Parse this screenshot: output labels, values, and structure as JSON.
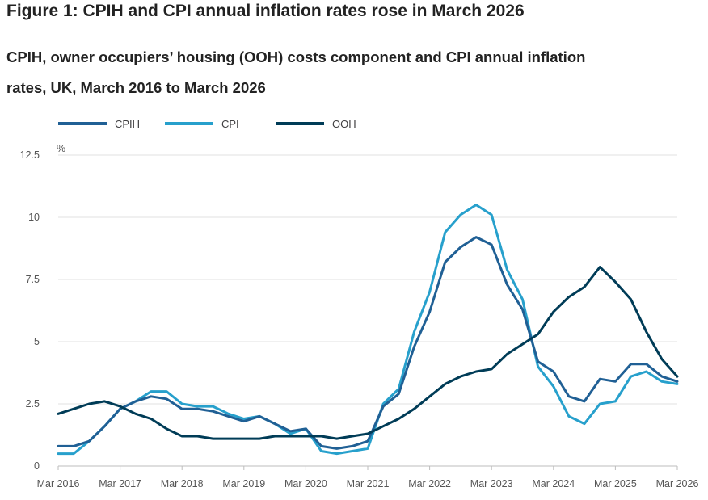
{
  "figure": {
    "title": "Figure 1: CPIH and CPI annual inflation rates rose in March 2026",
    "subtitle": "CPIH, owner occupiers’ housing (OOH) costs component and CPI annual inflation rates, UK, March 2016 to March 2026"
  },
  "colors": {
    "CPIH": "#206095",
    "CPI": "#27a0cc",
    "OOH": "#003c57",
    "grid": "#e0e0e0",
    "axis": "#bdbdbd",
    "text": "#555555"
  },
  "chart_data": {
    "type": "line",
    "y_unit_label": "%",
    "ylim": [
      0,
      12.5
    ],
    "y_ticks": [
      0,
      2.5,
      5,
      7.5,
      10,
      12.5
    ],
    "y_tick_labels": [
      "0",
      "2.5",
      "5",
      "7.5",
      "10",
      "12.5"
    ],
    "x_range": [
      "2016-03",
      "2026-03"
    ],
    "x_ticks": [
      "2016-03",
      "2017-03",
      "2018-03",
      "2019-03",
      "2020-03",
      "2021-03",
      "2022-03",
      "2023-03",
      "2024-03",
      "2025-03",
      "2026-03"
    ],
    "x_tick_labels": [
      "Mar 2016",
      "Mar 2017",
      "Mar 2018",
      "Mar 2019",
      "Mar 2020",
      "Mar 2021",
      "Mar 2022",
      "Mar 2023",
      "Mar 2024",
      "Mar 2025",
      "Mar 2026"
    ],
    "grid": "horizontal",
    "legend_position": "top-left",
    "series": [
      {
        "name": "CPIH",
        "points": [
          [
            "2016-03",
            0.8
          ],
          [
            "2016-06",
            0.8
          ],
          [
            "2016-09",
            1.0
          ],
          [
            "2016-12",
            1.6
          ],
          [
            "2017-03",
            2.3
          ],
          [
            "2017-06",
            2.6
          ],
          [
            "2017-09",
            2.8
          ],
          [
            "2017-12",
            2.7
          ],
          [
            "2018-03",
            2.3
          ],
          [
            "2018-06",
            2.3
          ],
          [
            "2018-09",
            2.2
          ],
          [
            "2018-12",
            2.0
          ],
          [
            "2019-03",
            1.8
          ],
          [
            "2019-06",
            2.0
          ],
          [
            "2019-09",
            1.7
          ],
          [
            "2019-12",
            1.4
          ],
          [
            "2020-03",
            1.5
          ],
          [
            "2020-06",
            0.8
          ],
          [
            "2020-09",
            0.7
          ],
          [
            "2020-12",
            0.8
          ],
          [
            "2021-03",
            1.0
          ],
          [
            "2021-06",
            2.4
          ],
          [
            "2021-09",
            2.9
          ],
          [
            "2021-12",
            4.8
          ],
          [
            "2022-03",
            6.2
          ],
          [
            "2022-06",
            8.2
          ],
          [
            "2022-09",
            8.8
          ],
          [
            "2022-12",
            9.2
          ],
          [
            "2023-03",
            8.9
          ],
          [
            "2023-06",
            7.3
          ],
          [
            "2023-09",
            6.3
          ],
          [
            "2023-12",
            4.2
          ],
          [
            "2024-03",
            3.8
          ],
          [
            "2024-06",
            2.8
          ],
          [
            "2024-09",
            2.6
          ],
          [
            "2024-12",
            3.5
          ],
          [
            "2025-03",
            3.4
          ],
          [
            "2025-06",
            4.1
          ],
          [
            "2025-09",
            4.1
          ],
          [
            "2025-12",
            3.6
          ],
          [
            "2026-03",
            3.4
          ]
        ]
      },
      {
        "name": "CPI",
        "points": [
          [
            "2016-03",
            0.5
          ],
          [
            "2016-06",
            0.5
          ],
          [
            "2016-09",
            1.0
          ],
          [
            "2016-12",
            1.6
          ],
          [
            "2017-03",
            2.3
          ],
          [
            "2017-06",
            2.6
          ],
          [
            "2017-09",
            3.0
          ],
          [
            "2017-12",
            3.0
          ],
          [
            "2018-03",
            2.5
          ],
          [
            "2018-06",
            2.4
          ],
          [
            "2018-09",
            2.4
          ],
          [
            "2018-12",
            2.1
          ],
          [
            "2019-03",
            1.9
          ],
          [
            "2019-06",
            2.0
          ],
          [
            "2019-09",
            1.7
          ],
          [
            "2019-12",
            1.3
          ],
          [
            "2020-03",
            1.5
          ],
          [
            "2020-06",
            0.6
          ],
          [
            "2020-09",
            0.5
          ],
          [
            "2020-12",
            0.6
          ],
          [
            "2021-03",
            0.7
          ],
          [
            "2021-06",
            2.5
          ],
          [
            "2021-09",
            3.1
          ],
          [
            "2021-12",
            5.4
          ],
          [
            "2022-03",
            7.0
          ],
          [
            "2022-06",
            9.4
          ],
          [
            "2022-09",
            10.1
          ],
          [
            "2022-12",
            10.5
          ],
          [
            "2023-03",
            10.1
          ],
          [
            "2023-06",
            7.9
          ],
          [
            "2023-09",
            6.7
          ],
          [
            "2023-12",
            4.0
          ],
          [
            "2024-03",
            3.2
          ],
          [
            "2024-06",
            2.0
          ],
          [
            "2024-09",
            1.7
          ],
          [
            "2024-12",
            2.5
          ],
          [
            "2025-03",
            2.6
          ],
          [
            "2025-06",
            3.6
          ],
          [
            "2025-09",
            3.8
          ],
          [
            "2025-12",
            3.4
          ],
          [
            "2026-03",
            3.3
          ]
        ]
      },
      {
        "name": "OOH",
        "points": [
          [
            "2016-03",
            2.1
          ],
          [
            "2016-06",
            2.3
          ],
          [
            "2016-09",
            2.5
          ],
          [
            "2016-12",
            2.6
          ],
          [
            "2017-03",
            2.4
          ],
          [
            "2017-06",
            2.1
          ],
          [
            "2017-09",
            1.9
          ],
          [
            "2017-12",
            1.5
          ],
          [
            "2018-03",
            1.2
          ],
          [
            "2018-06",
            1.2
          ],
          [
            "2018-09",
            1.1
          ],
          [
            "2018-12",
            1.1
          ],
          [
            "2019-03",
            1.1
          ],
          [
            "2019-06",
            1.1
          ],
          [
            "2019-09",
            1.2
          ],
          [
            "2019-12",
            1.2
          ],
          [
            "2020-03",
            1.2
          ],
          [
            "2020-06",
            1.2
          ],
          [
            "2020-09",
            1.1
          ],
          [
            "2020-12",
            1.2
          ],
          [
            "2021-03",
            1.3
          ],
          [
            "2021-06",
            1.6
          ],
          [
            "2021-09",
            1.9
          ],
          [
            "2021-12",
            2.3
          ],
          [
            "2022-03",
            2.8
          ],
          [
            "2022-06",
            3.3
          ],
          [
            "2022-09",
            3.6
          ],
          [
            "2022-12",
            3.8
          ],
          [
            "2023-03",
            3.9
          ],
          [
            "2023-06",
            4.5
          ],
          [
            "2023-09",
            4.9
          ],
          [
            "2023-12",
            5.3
          ],
          [
            "2024-03",
            6.2
          ],
          [
            "2024-06",
            6.8
          ],
          [
            "2024-09",
            7.2
          ],
          [
            "2024-12",
            8.0
          ],
          [
            "2025-03",
            7.4
          ],
          [
            "2025-06",
            6.7
          ],
          [
            "2025-09",
            5.4
          ],
          [
            "2025-12",
            4.3
          ],
          [
            "2026-03",
            3.6
          ]
        ]
      }
    ]
  }
}
